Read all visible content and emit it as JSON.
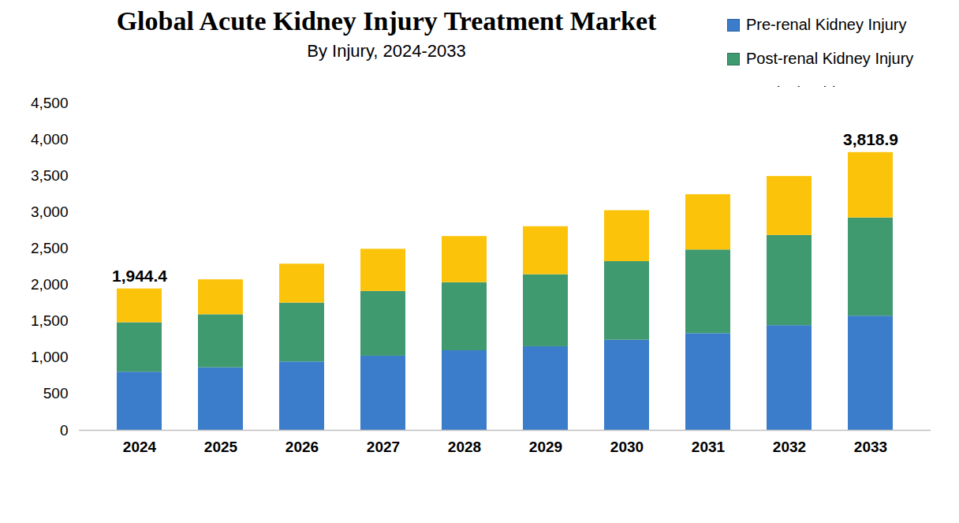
{
  "chart_data": {
    "type": "bar",
    "stacked": true,
    "title": "Global Acute Kidney Injury Treatment Market",
    "subtitle": "By Injury, 2024-2033",
    "categories": [
      "2024",
      "2025",
      "2026",
      "2027",
      "2028",
      "2029",
      "2030",
      "2031",
      "2032",
      "2033"
    ],
    "series": [
      {
        "name": "Pre-renal Kidney Injury",
        "color": "#3b7dcb",
        "values": [
          800,
          860,
          940,
          1020,
          1095,
          1150,
          1240,
          1330,
          1440,
          1570
        ]
      },
      {
        "name": "Post-renal Kidney Injury",
        "color": "#3f9a6f",
        "values": [
          680,
          730,
          810,
          890,
          935,
          990,
          1080,
          1150,
          1240,
          1350
        ]
      },
      {
        "name": "Instrinsic Kidney Insury",
        "color": "#fcc30b",
        "values": [
          464.4,
          480,
          535,
          580,
          635,
          660,
          700,
          760,
          810,
          898.9
        ]
      }
    ],
    "annotations": [
      {
        "category": "2024",
        "value": 1944.4,
        "label": "1,944.4"
      },
      {
        "category": "2033",
        "value": 3818.9,
        "label": "3,818.9"
      }
    ],
    "ylim": [
      0,
      4500
    ],
    "yticks": [
      0,
      500,
      1000,
      1500,
      2000,
      2500,
      3000,
      3500,
      4000,
      4500
    ],
    "grid": false,
    "legend": "top-right"
  }
}
